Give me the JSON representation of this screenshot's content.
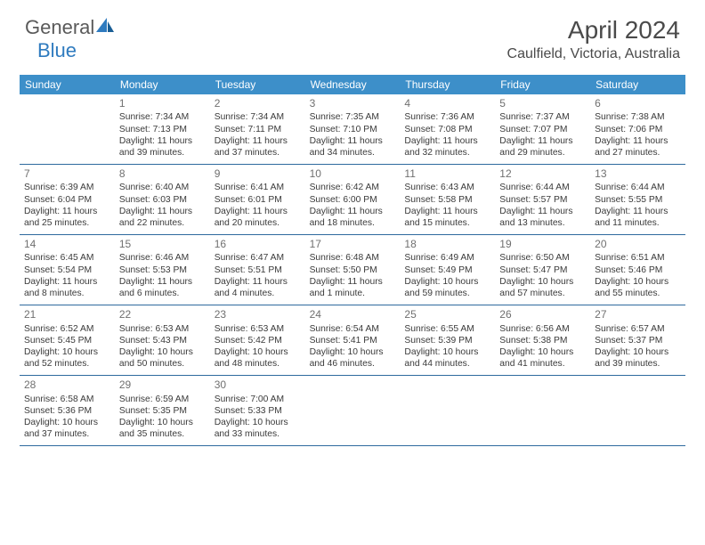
{
  "logo": {
    "text1": "General",
    "text2": "Blue"
  },
  "title": "April 2024",
  "location": "Caulfield, Victoria, Australia",
  "colors": {
    "header_bar": "#3d8fc9",
    "rule": "#2e6a9e",
    "logo_blue": "#2f7bbf",
    "text": "#3a3a3a"
  },
  "daysOfWeek": [
    "Sunday",
    "Monday",
    "Tuesday",
    "Wednesday",
    "Thursday",
    "Friday",
    "Saturday"
  ],
  "weeks": [
    [
      null,
      {
        "n": "1",
        "sr": "7:34 AM",
        "ss": "7:13 PM",
        "dl": "11 hours and 39 minutes."
      },
      {
        "n": "2",
        "sr": "7:34 AM",
        "ss": "7:11 PM",
        "dl": "11 hours and 37 minutes."
      },
      {
        "n": "3",
        "sr": "7:35 AM",
        "ss": "7:10 PM",
        "dl": "11 hours and 34 minutes."
      },
      {
        "n": "4",
        "sr": "7:36 AM",
        "ss": "7:08 PM",
        "dl": "11 hours and 32 minutes."
      },
      {
        "n": "5",
        "sr": "7:37 AM",
        "ss": "7:07 PM",
        "dl": "11 hours and 29 minutes."
      },
      {
        "n": "6",
        "sr": "7:38 AM",
        "ss": "7:06 PM",
        "dl": "11 hours and 27 minutes."
      }
    ],
    [
      {
        "n": "7",
        "sr": "6:39 AM",
        "ss": "6:04 PM",
        "dl": "11 hours and 25 minutes."
      },
      {
        "n": "8",
        "sr": "6:40 AM",
        "ss": "6:03 PM",
        "dl": "11 hours and 22 minutes."
      },
      {
        "n": "9",
        "sr": "6:41 AM",
        "ss": "6:01 PM",
        "dl": "11 hours and 20 minutes."
      },
      {
        "n": "10",
        "sr": "6:42 AM",
        "ss": "6:00 PM",
        "dl": "11 hours and 18 minutes."
      },
      {
        "n": "11",
        "sr": "6:43 AM",
        "ss": "5:58 PM",
        "dl": "11 hours and 15 minutes."
      },
      {
        "n": "12",
        "sr": "6:44 AM",
        "ss": "5:57 PM",
        "dl": "11 hours and 13 minutes."
      },
      {
        "n": "13",
        "sr": "6:44 AM",
        "ss": "5:55 PM",
        "dl": "11 hours and 11 minutes."
      }
    ],
    [
      {
        "n": "14",
        "sr": "6:45 AM",
        "ss": "5:54 PM",
        "dl": "11 hours and 8 minutes."
      },
      {
        "n": "15",
        "sr": "6:46 AM",
        "ss": "5:53 PM",
        "dl": "11 hours and 6 minutes."
      },
      {
        "n": "16",
        "sr": "6:47 AM",
        "ss": "5:51 PM",
        "dl": "11 hours and 4 minutes."
      },
      {
        "n": "17",
        "sr": "6:48 AM",
        "ss": "5:50 PM",
        "dl": "11 hours and 1 minute."
      },
      {
        "n": "18",
        "sr": "6:49 AM",
        "ss": "5:49 PM",
        "dl": "10 hours and 59 minutes."
      },
      {
        "n": "19",
        "sr": "6:50 AM",
        "ss": "5:47 PM",
        "dl": "10 hours and 57 minutes."
      },
      {
        "n": "20",
        "sr": "6:51 AM",
        "ss": "5:46 PM",
        "dl": "10 hours and 55 minutes."
      }
    ],
    [
      {
        "n": "21",
        "sr": "6:52 AM",
        "ss": "5:45 PM",
        "dl": "10 hours and 52 minutes."
      },
      {
        "n": "22",
        "sr": "6:53 AM",
        "ss": "5:43 PM",
        "dl": "10 hours and 50 minutes."
      },
      {
        "n": "23",
        "sr": "6:53 AM",
        "ss": "5:42 PM",
        "dl": "10 hours and 48 minutes."
      },
      {
        "n": "24",
        "sr": "6:54 AM",
        "ss": "5:41 PM",
        "dl": "10 hours and 46 minutes."
      },
      {
        "n": "25",
        "sr": "6:55 AM",
        "ss": "5:39 PM",
        "dl": "10 hours and 44 minutes."
      },
      {
        "n": "26",
        "sr": "6:56 AM",
        "ss": "5:38 PM",
        "dl": "10 hours and 41 minutes."
      },
      {
        "n": "27",
        "sr": "6:57 AM",
        "ss": "5:37 PM",
        "dl": "10 hours and 39 minutes."
      }
    ],
    [
      {
        "n": "28",
        "sr": "6:58 AM",
        "ss": "5:36 PM",
        "dl": "10 hours and 37 minutes."
      },
      {
        "n": "29",
        "sr": "6:59 AM",
        "ss": "5:35 PM",
        "dl": "10 hours and 35 minutes."
      },
      {
        "n": "30",
        "sr": "7:00 AM",
        "ss": "5:33 PM",
        "dl": "10 hours and 33 minutes."
      },
      null,
      null,
      null,
      null
    ]
  ]
}
